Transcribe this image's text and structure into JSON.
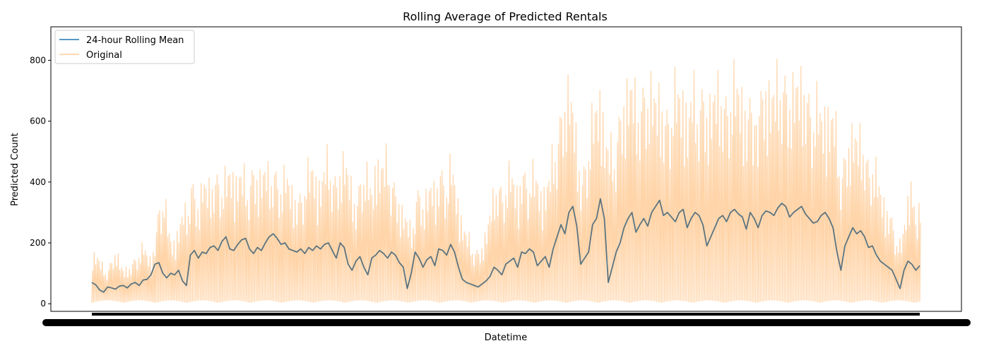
{
  "chart_data": {
    "type": "line",
    "title": "Rolling Average of Predicted Rentals",
    "xlabel": "Datetime",
    "ylabel": "Predicted Count",
    "ylim": [
      -25,
      910
    ],
    "yticks": [
      0,
      200,
      400,
      600,
      800
    ],
    "grid": false,
    "legend_position": "top-left",
    "series": [
      {
        "name": "24-hour Rolling Mean",
        "color": "#1f77b4",
        "values": [
          70,
          62,
          45,
          38,
          55,
          52,
          48,
          58,
          60,
          52,
          65,
          70,
          60,
          78,
          80,
          95,
          130,
          135,
          100,
          85,
          100,
          95,
          110,
          75,
          60,
          160,
          175,
          150,
          170,
          165,
          185,
          190,
          175,
          205,
          220,
          180,
          175,
          195,
          210,
          215,
          180,
          165,
          185,
          175,
          200,
          220,
          230,
          215,
          195,
          200,
          180,
          175,
          170,
          180,
          165,
          185,
          175,
          190,
          180,
          195,
          200,
          175,
          150,
          200,
          185,
          130,
          110,
          140,
          155,
          120,
          95,
          150,
          160,
          175,
          165,
          150,
          170,
          160,
          135,
          120,
          50,
          100,
          170,
          150,
          120,
          145,
          155,
          125,
          180,
          175,
          160,
          195,
          170,
          120,
          80,
          70,
          65,
          60,
          55,
          65,
          75,
          90,
          120,
          110,
          95,
          130,
          140,
          150,
          120,
          170,
          165,
          180,
          170,
          125,
          140,
          155,
          120,
          180,
          220,
          260,
          230,
          300,
          320,
          255,
          130,
          150,
          170,
          260,
          280,
          345,
          280,
          70,
          120,
          170,
          200,
          250,
          280,
          300,
          235,
          260,
          280,
          255,
          300,
          320,
          340,
          290,
          300,
          285,
          270,
          300,
          310,
          250,
          280,
          300,
          290,
          260,
          190,
          220,
          250,
          280,
          290,
          270,
          300,
          310,
          295,
          285,
          245,
          300,
          280,
          250,
          290,
          305,
          300,
          290,
          315,
          330,
          320,
          285,
          300,
          310,
          320,
          295,
          280,
          265,
          270,
          290,
          300,
          280,
          250,
          170,
          110,
          190,
          220,
          250,
          230,
          240,
          220,
          185,
          190,
          160,
          140,
          130,
          120,
          110,
          80,
          50,
          110,
          140,
          130,
          110,
          125
        ]
      },
      {
        "name": "Original",
        "color": "#ffcc99",
        "envelope": [
          200,
          190,
          150,
          130,
          140,
          170,
          210,
          150,
          120,
          140,
          160,
          180,
          200,
          220,
          180,
          170,
          260,
          400,
          430,
          290,
          240,
          250,
          300,
          350,
          340,
          490,
          420,
          380,
          470,
          440,
          460,
          480,
          500,
          460,
          470,
          520,
          480,
          510,
          470,
          460,
          500,
          520,
          480,
          500,
          510,
          480,
          540,
          470,
          460,
          500,
          450,
          420,
          400,
          430,
          500,
          480,
          540,
          460,
          470,
          520,
          560,
          500,
          470,
          540,
          550,
          480,
          430,
          380,
          500,
          520,
          460,
          420,
          570,
          550,
          500,
          560,
          500,
          420,
          380,
          350,
          300,
          280,
          420,
          440,
          380,
          420,
          460,
          430,
          520,
          500,
          470,
          520,
          460,
          370,
          300,
          250,
          230,
          210,
          200,
          230,
          280,
          360,
          440,
          480,
          420,
          480,
          500,
          460,
          420,
          520,
          490,
          510,
          460,
          480,
          420,
          450,
          480,
          600,
          650,
          760,
          800,
          820,
          720,
          600,
          460,
          560,
          640,
          700,
          770,
          820,
          650,
          560,
          580,
          680,
          740,
          800,
          840,
          820,
          760,
          780,
          850,
          820,
          800,
          780,
          820,
          700,
          760,
          800,
          780,
          820,
          820,
          700,
          800,
          780,
          810,
          820,
          740,
          760,
          820,
          830,
          800,
          780,
          840,
          830,
          820,
          800,
          700,
          820,
          830,
          800,
          820,
          840,
          810,
          800,
          870,
          880,
          860,
          800,
          820,
          850,
          860,
          820,
          790,
          760,
          740,
          720,
          760,
          740,
          700,
          600,
          520,
          580,
          640,
          660,
          620,
          640,
          600,
          520,
          560,
          480,
          420,
          380,
          350,
          320,
          260,
          200,
          320,
          450,
          460,
          260,
          400
        ]
      }
    ]
  }
}
